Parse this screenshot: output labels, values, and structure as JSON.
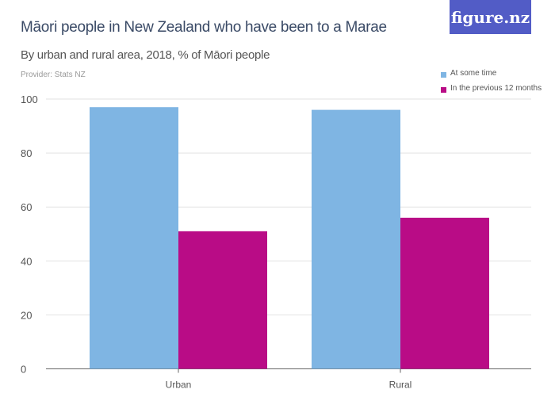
{
  "title": "Māori people in New Zealand who have been to a Marae",
  "subtitle": "By urban and rural area, 2018, % of Māori people",
  "provider": "Provider: Stats NZ",
  "logo": "figure.nz",
  "colors": {
    "logo_bg": "#525cc6"
  },
  "chart_data": {
    "type": "bar",
    "categories": [
      "Urban",
      "Rural"
    ],
    "series": [
      {
        "name": "At some time",
        "color": "#7fb5e3",
        "values": [
          97,
          96
        ]
      },
      {
        "name": "In the previous 12 months",
        "color": "#b90c86",
        "values": [
          51,
          56
        ]
      }
    ],
    "ylim": [
      0,
      100
    ],
    "yticks": [
      0,
      20,
      40,
      60,
      80,
      100
    ],
    "grid": true,
    "legend": "top-right"
  }
}
